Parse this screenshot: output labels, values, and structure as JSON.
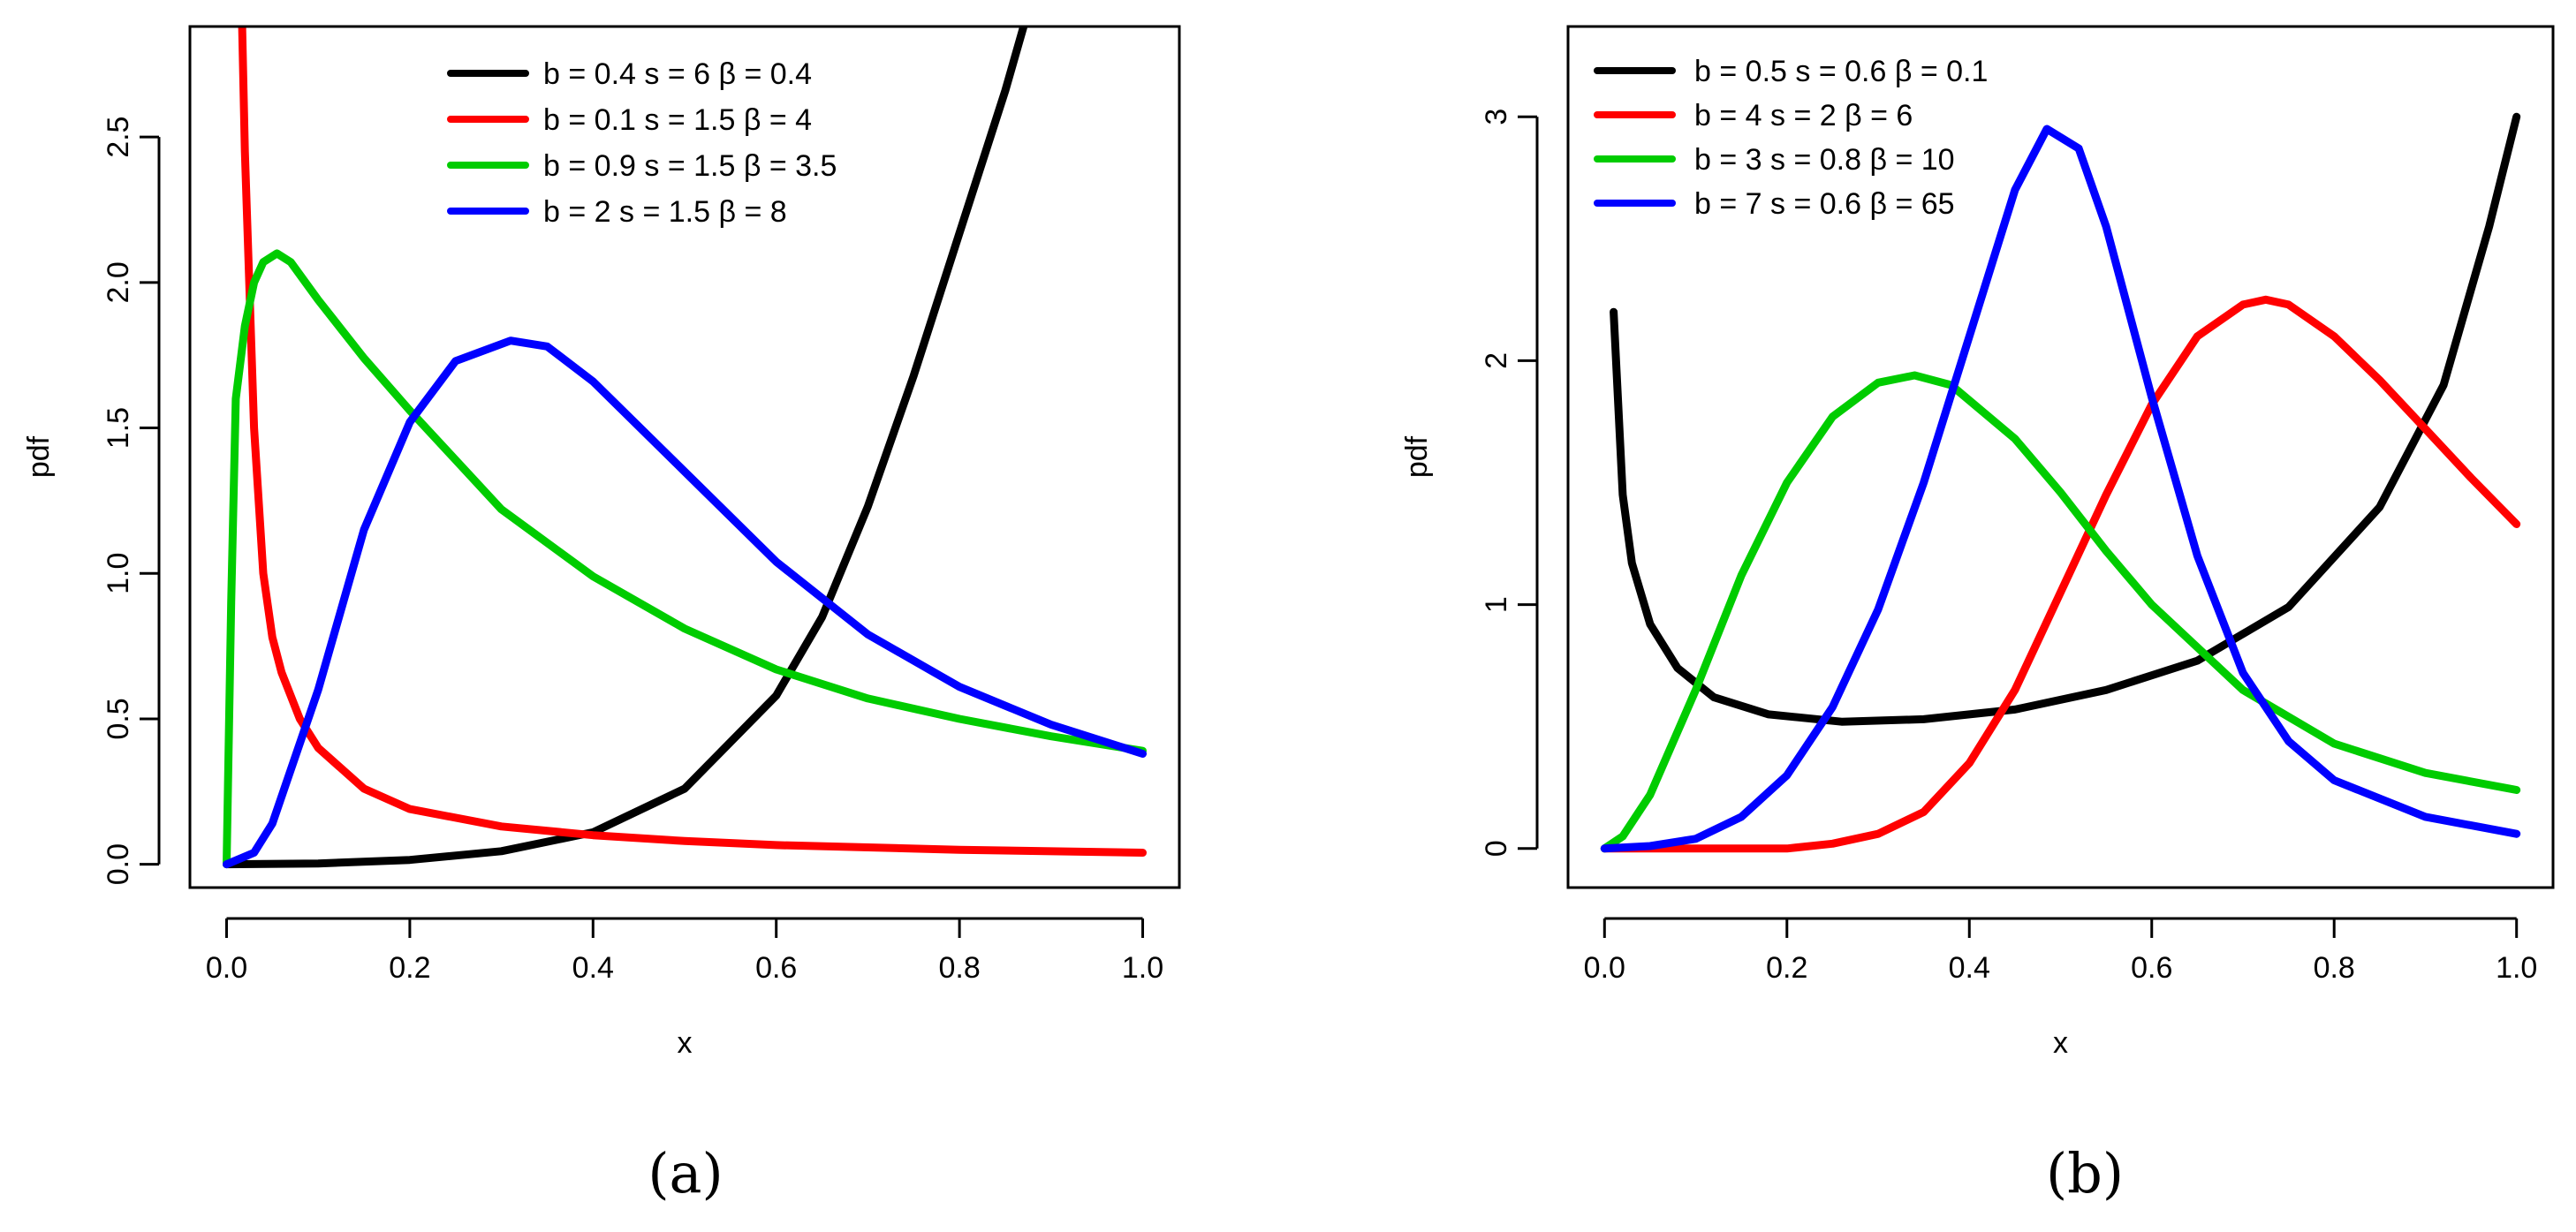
{
  "figure": {
    "panel_labels": [
      "(a)",
      "(b)"
    ]
  },
  "chart_data": [
    {
      "type": "line",
      "panel": "(a)",
      "title": "",
      "xlabel": "x",
      "ylabel": "pdf",
      "xlim": [
        -0.04,
        1.04
      ],
      "ylim": [
        -0.08,
        2.88
      ],
      "xticks": [
        0.0,
        0.2,
        0.4,
        0.6,
        0.8,
        1.0
      ],
      "xtick_labels": [
        "0.0",
        "0.2",
        "0.4",
        "0.6",
        "0.8",
        "1.0"
      ],
      "yticks": [
        0.0,
        0.5,
        1.0,
        1.5,
        2.0,
        2.5
      ],
      "ytick_labels": [
        "0.0",
        "0.5",
        "1.0",
        "1.5",
        "2.0",
        "2.5"
      ],
      "grid": false,
      "legend_position": "top-center",
      "series": [
        {
          "name": "b = 0.4   s = 6  β = 0.4",
          "color": "#000000",
          "x": [
            0.0,
            0.1,
            0.2,
            0.3,
            0.4,
            0.5,
            0.6,
            0.65,
            0.7,
            0.75,
            0.8,
            0.85,
            0.87
          ],
          "y": [
            0.0,
            0.003,
            0.015,
            0.045,
            0.11,
            0.26,
            0.58,
            0.85,
            1.23,
            1.68,
            2.17,
            2.66,
            2.88
          ]
        },
        {
          "name": "b = 0.1   s = 1.5  β = 4",
          "color": "#ff0000",
          "x": [
            0.017,
            0.02,
            0.03,
            0.04,
            0.05,
            0.06,
            0.08,
            0.1,
            0.15,
            0.2,
            0.3,
            0.4,
            0.5,
            0.6,
            0.8,
            1.0
          ],
          "y": [
            2.88,
            2.45,
            1.5,
            1.0,
            0.78,
            0.66,
            0.5,
            0.4,
            0.26,
            0.19,
            0.13,
            0.1,
            0.08,
            0.066,
            0.05,
            0.04
          ]
        },
        {
          "name": "b = 0.9   s = 1.5  β = 3.5",
          "color": "#00cc00",
          "x": [
            0.0,
            0.005,
            0.01,
            0.02,
            0.03,
            0.04,
            0.055,
            0.07,
            0.1,
            0.15,
            0.2,
            0.3,
            0.4,
            0.5,
            0.6,
            0.7,
            0.8,
            0.9,
            1.0
          ],
          "y": [
            0.0,
            0.9,
            1.6,
            1.85,
            2.0,
            2.07,
            2.1,
            2.07,
            1.94,
            1.74,
            1.56,
            1.22,
            0.99,
            0.81,
            0.67,
            0.57,
            0.5,
            0.44,
            0.39
          ]
        },
        {
          "name": "b = 2    s = 1.5  β = 8",
          "color": "#0000ff",
          "x": [
            0.0,
            0.03,
            0.05,
            0.1,
            0.15,
            0.2,
            0.25,
            0.31,
            0.35,
            0.4,
            0.5,
            0.6,
            0.7,
            0.8,
            0.9,
            1.0
          ],
          "y": [
            0.0,
            0.04,
            0.14,
            0.6,
            1.15,
            1.52,
            1.73,
            1.8,
            1.78,
            1.66,
            1.35,
            1.04,
            0.79,
            0.61,
            0.48,
            0.38
          ]
        }
      ]
    },
    {
      "type": "line",
      "panel": "(b)",
      "title": "",
      "xlabel": "x",
      "ylabel": "pdf",
      "xlim": [
        -0.04,
        1.04
      ],
      "ylim": [
        -0.16,
        3.37
      ],
      "xticks": [
        0.0,
        0.2,
        0.4,
        0.6,
        0.8,
        1.0
      ],
      "xtick_labels": [
        "0.0",
        "0.2",
        "0.4",
        "0.6",
        "0.8",
        "1.0"
      ],
      "yticks": [
        0,
        1,
        2,
        3
      ],
      "ytick_labels": [
        "0",
        "1",
        "2",
        "3"
      ],
      "grid": false,
      "legend_position": "top-left",
      "series": [
        {
          "name": "b = 0.5   s = 0.6  β = 0.1",
          "color": "#000000",
          "x": [
            0.01,
            0.02,
            0.03,
            0.05,
            0.08,
            0.12,
            0.18,
            0.26,
            0.35,
            0.45,
            0.55,
            0.65,
            0.75,
            0.85,
            0.92,
            0.97,
            1.0
          ],
          "y": [
            2.2,
            1.45,
            1.17,
            0.92,
            0.74,
            0.62,
            0.55,
            0.52,
            0.53,
            0.57,
            0.65,
            0.77,
            0.99,
            1.4,
            1.9,
            2.55,
            3.0
          ]
        },
        {
          "name": "b = 4   s = 2  β = 6",
          "color": "#ff0000",
          "x": [
            0.0,
            0.2,
            0.25,
            0.3,
            0.35,
            0.4,
            0.45,
            0.5,
            0.55,
            0.6,
            0.65,
            0.7,
            0.725,
            0.75,
            0.8,
            0.85,
            0.9,
            0.95,
            1.0
          ],
          "y": [
            0.0,
            0.0,
            0.02,
            0.06,
            0.15,
            0.35,
            0.65,
            1.05,
            1.45,
            1.82,
            2.1,
            2.23,
            2.25,
            2.23,
            2.1,
            1.92,
            1.72,
            1.52,
            1.33
          ]
        },
        {
          "name": "b = 3   s = 0.8  β = 10",
          "color": "#00cc00",
          "x": [
            0.0,
            0.02,
            0.05,
            0.1,
            0.15,
            0.2,
            0.25,
            0.3,
            0.34,
            0.38,
            0.45,
            0.5,
            0.55,
            0.6,
            0.7,
            0.8,
            0.9,
            1.0
          ],
          "y": [
            0.0,
            0.05,
            0.22,
            0.65,
            1.12,
            1.5,
            1.77,
            1.91,
            1.94,
            1.9,
            1.68,
            1.46,
            1.22,
            1.0,
            0.65,
            0.43,
            0.31,
            0.24
          ]
        },
        {
          "name": "b = 7   s = 0.6  β = 65",
          "color": "#0000ff",
          "x": [
            0.0,
            0.05,
            0.1,
            0.15,
            0.2,
            0.25,
            0.3,
            0.35,
            0.4,
            0.45,
            0.485,
            0.52,
            0.55,
            0.6,
            0.65,
            0.7,
            0.75,
            0.8,
            0.9,
            1.0
          ],
          "y": [
            0.0,
            0.01,
            0.04,
            0.13,
            0.3,
            0.58,
            0.98,
            1.5,
            2.1,
            2.7,
            2.95,
            2.87,
            2.55,
            1.85,
            1.2,
            0.72,
            0.44,
            0.28,
            0.13,
            0.06
          ]
        }
      ]
    }
  ]
}
